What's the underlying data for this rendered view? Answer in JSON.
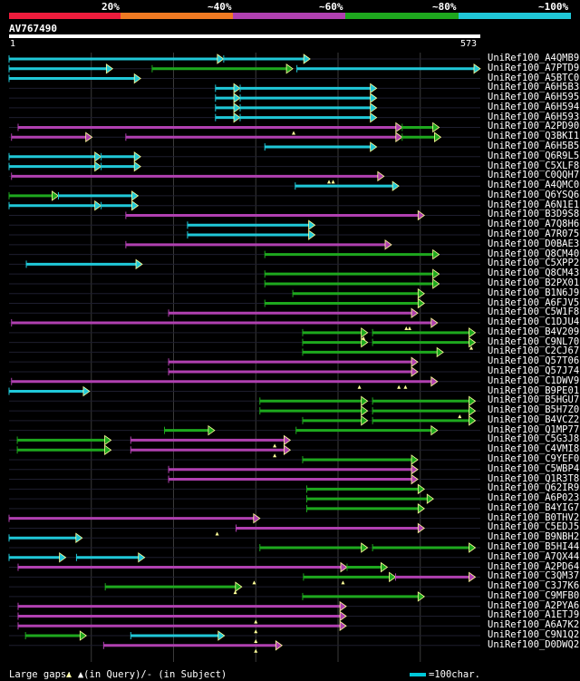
{
  "colors": {
    "red": "#ee1c3c",
    "orange": "#f07a22",
    "purple": "#b040b0",
    "green": "#1ea81e",
    "cyan": "#20c8d8",
    "grid": "#3a3a3a",
    "arrowhead": "#ffff99"
  },
  "legend": {
    "segments": [
      {
        "label": "20%",
        "color": "red"
      },
      {
        "label": "~40%",
        "color": "orange"
      },
      {
        "label": "~60%",
        "color": "purple"
      },
      {
        "label": "~80%",
        "color": "green"
      },
      {
        "label": "~100%",
        "color": "cyan"
      }
    ]
  },
  "query": {
    "id": "AV767490",
    "start": "1",
    "end": "573"
  },
  "hits": [
    {
      "id": "UniRef100_A4QMB9",
      "color": "cyan",
      "segs": [
        [
          0,
          261
        ],
        [
          261,
          366
        ]
      ]
    },
    {
      "id": "UniRef100_A7PTD9",
      "color": "cyan",
      "segs": [
        [
          0,
          126
        ],
        [
          174,
          345
        ],
        [
          350,
          573
        ]
      ],
      "segcolors": [
        "cyan",
        "green",
        "cyan"
      ]
    },
    {
      "id": "UniRef100_A5BTC0",
      "color": "cyan",
      "segs": [
        [
          0,
          160
        ]
      ]
    },
    {
      "id": "UniRef100_A6H5B3",
      "color": "cyan",
      "segs": [
        [
          251,
          281
        ],
        [
          281,
          447
        ]
      ]
    },
    {
      "id": "UniRef100_A6H595",
      "color": "cyan",
      "segs": [
        [
          251,
          281
        ],
        [
          281,
          447
        ]
      ]
    },
    {
      "id": "UniRef100_A6H594",
      "color": "cyan",
      "segs": [
        [
          251,
          281
        ],
        [
          281,
          447
        ]
      ]
    },
    {
      "id": "UniRef100_A6H593",
      "color": "cyan",
      "segs": [
        [
          251,
          281
        ],
        [
          281,
          447
        ]
      ]
    },
    {
      "id": "UniRef100_A2PD90",
      "color": "purple",
      "segs": [
        [
          11,
          478
        ],
        [
          478,
          523
        ]
      ],
      "segcolors": [
        "purple",
        "green"
      ]
    },
    {
      "id": "UniRef100_Q3BKI1",
      "color": "purple",
      "segs": [
        [
          3,
          101
        ],
        [
          142,
          478
        ],
        [
          478,
          525
        ]
      ],
      "segcolors": [
        "purple",
        "purple",
        "green"
      ]
    },
    {
      "id": "UniRef100_A6H5B5",
      "color": "cyan",
      "segs": [
        [
          311,
          447
        ]
      ]
    },
    {
      "id": "UniRef100_Q6R9L5",
      "color": "cyan",
      "segs": [
        [
          0,
          112
        ],
        [
          112,
          160
        ]
      ]
    },
    {
      "id": "UniRef100_C5XLF8",
      "color": "cyan",
      "segs": [
        [
          0,
          112
        ],
        [
          112,
          160
        ]
      ]
    },
    {
      "id": "UniRef100_C0QQH7",
      "color": "purple",
      "segs": [
        [
          3,
          456
        ]
      ]
    },
    {
      "id": "UniRef100_A4QMC0",
      "color": "cyan",
      "segs": [
        [
          348,
          474
        ]
      ]
    },
    {
      "id": "UniRef100_Q6YSQ6",
      "color": "cyan",
      "segs": [
        [
          0,
          60
        ],
        [
          60,
          157
        ]
      ],
      "segcolors": [
        "green",
        "cyan"
      ]
    },
    {
      "id": "UniRef100_A6N1E1",
      "color": "cyan",
      "segs": [
        [
          0,
          112
        ],
        [
          112,
          157
        ]
      ]
    },
    {
      "id": "UniRef100_B3D9S8",
      "color": "purple",
      "segs": [
        [
          142,
          505
        ]
      ]
    },
    {
      "id": "UniRef100_A7Q8H6",
      "color": "cyan",
      "segs": [
        [
          217,
          372
        ]
      ]
    },
    {
      "id": "UniRef100_A7R075",
      "color": "cyan",
      "segs": [
        [
          217,
          372
        ]
      ]
    },
    {
      "id": "UniRef100_D0BAE3",
      "color": "purple",
      "segs": [
        [
          142,
          465
        ]
      ]
    },
    {
      "id": "UniRef100_Q8CM40",
      "color": "green",
      "segs": [
        [
          311,
          523
        ]
      ]
    },
    {
      "id": "UniRef100_C5XPP2",
      "color": "cyan",
      "segs": [
        [
          21,
          162
        ]
      ]
    },
    {
      "id": "UniRef100_Q8CM43",
      "color": "green",
      "segs": [
        [
          311,
          523
        ]
      ]
    },
    {
      "id": "UniRef100_B2PX01",
      "color": "green",
      "segs": [
        [
          311,
          523
        ]
      ]
    },
    {
      "id": "UniRef100_B1N6J9",
      "color": "green",
      "segs": [
        [
          345,
          505
        ]
      ]
    },
    {
      "id": "UniRef100_A6FJV5",
      "color": "green",
      "segs": [
        [
          311,
          505
        ]
      ],
      "segcolors": [
        "green"
      ]
    },
    {
      "id": "UniRef100_C5W1F8",
      "color": "purple",
      "segs": [
        [
          194,
          497
        ]
      ]
    },
    {
      "id": "UniRef100_C1DJU4",
      "color": "purple",
      "segs": [
        [
          3,
          521
        ]
      ]
    },
    {
      "id": "UniRef100_B4V209",
      "color": "green",
      "segs": [
        [
          357,
          436
        ],
        [
          442,
          567
        ]
      ]
    },
    {
      "id": "UniRef100_C9NL70",
      "color": "green",
      "segs": [
        [
          357,
          436
        ],
        [
          442,
          567
        ]
      ]
    },
    {
      "id": "UniRef100_C2CJ67",
      "color": "green",
      "segs": [
        [
          357,
          528
        ]
      ]
    },
    {
      "id": "UniRef100_Q57T06",
      "color": "purple",
      "segs": [
        [
          194,
          497
        ]
      ]
    },
    {
      "id": "UniRef100_Q57J74",
      "color": "purple",
      "segs": [
        [
          194,
          497
        ]
      ]
    },
    {
      "id": "UniRef100_C1DWV9",
      "color": "purple",
      "segs": [
        [
          3,
          521
        ]
      ]
    },
    {
      "id": "UniRef100_B9PE01",
      "color": "cyan",
      "segs": [
        [
          0,
          98
        ]
      ]
    },
    {
      "id": "UniRef100_B5HGU7",
      "color": "green",
      "segs": [
        [
          305,
          436
        ],
        [
          442,
          567
        ]
      ]
    },
    {
      "id": "UniRef100_B5H7Z0",
      "color": "green",
      "segs": [
        [
          305,
          436
        ],
        [
          442,
          567
        ]
      ]
    },
    {
      "id": "UniRef100_B4VCZ2",
      "color": "green",
      "segs": [
        [
          357,
          436
        ],
        [
          442,
          567
        ]
      ]
    },
    {
      "id": "UniRef100_Q1MP77",
      "color": "green",
      "segs": [
        [
          189,
          250
        ],
        [
          349,
          521
        ]
      ],
      "segcolors": [
        "green",
        "green"
      ]
    },
    {
      "id": "UniRef100_C5G3J8",
      "color": "green",
      "segs": [
        [
          10,
          124
        ],
        [
          148,
          342
        ]
      ],
      "segcolors": [
        "green",
        "purple"
      ]
    },
    {
      "id": "UniRef100_C4VMI8",
      "color": "green",
      "segs": [
        [
          10,
          124
        ],
        [
          148,
          342
        ]
      ],
      "segcolors": [
        "green",
        "purple"
      ]
    },
    {
      "id": "UniRef100_C9YEF0",
      "color": "green",
      "segs": [
        [
          357,
          497
        ]
      ]
    },
    {
      "id": "UniRef100_C5WBP4",
      "color": "purple",
      "segs": [
        [
          194,
          497
        ]
      ]
    },
    {
      "id": "UniRef100_Q1R3T8",
      "color": "purple",
      "segs": [
        [
          194,
          497
        ]
      ]
    },
    {
      "id": "UniRef100_Q62IR9",
      "color": "green",
      "segs": [
        [
          362,
          505
        ]
      ]
    },
    {
      "id": "UniRef100_A6P023",
      "color": "green",
      "segs": [
        [
          362,
          516
        ]
      ]
    },
    {
      "id": "UniRef100_B4YIG7",
      "color": "green",
      "segs": [
        [
          362,
          505
        ]
      ]
    },
    {
      "id": "UniRef100_B0THV2",
      "color": "purple",
      "segs": [
        [
          0,
          305
        ]
      ]
    },
    {
      "id": "UniRef100_C5EDJ5",
      "color": "purple",
      "segs": [
        [
          276,
          505
        ]
      ]
    },
    {
      "id": "UniRef100_B9NBH2",
      "color": "cyan",
      "segs": [
        [
          0,
          89
        ]
      ]
    },
    {
      "id": "UniRef100_B5HI44",
      "color": "green",
      "segs": [
        [
          305,
          436
        ],
        [
          442,
          567
        ]
      ]
    },
    {
      "id": "UniRef100_A7QX44",
      "color": "cyan",
      "segs": [
        [
          0,
          69
        ],
        [
          82,
          165
        ]
      ]
    },
    {
      "id": "UniRef100_A2PD64",
      "color": "purple",
      "segs": [
        [
          11,
          411
        ],
        [
          411,
          460
        ]
      ],
      "segcolors": [
        "purple",
        "green"
      ]
    },
    {
      "id": "UniRef100_C3QM37",
      "color": "purple",
      "segs": [
        [
          358,
          470
        ],
        [
          470,
          567
        ]
      ],
      "segcolors": [
        "green",
        "purple"
      ]
    },
    {
      "id": "UniRef100_C3J7K6",
      "color": "green",
      "segs": [
        [
          117,
          283
        ]
      ]
    },
    {
      "id": "UniRef100_C9MFB0",
      "color": "green",
      "segs": [
        [
          357,
          505
        ]
      ]
    },
    {
      "id": "UniRef100_A2PYA6",
      "color": "purple",
      "segs": [
        [
          11,
          410
        ]
      ]
    },
    {
      "id": "UniRef100_A1ETJ9",
      "color": "purple",
      "segs": [
        [
          11,
          410
        ]
      ]
    },
    {
      "id": "UniRef100_A6A7K2",
      "color": "purple",
      "segs": [
        [
          11,
          410
        ]
      ]
    },
    {
      "id": "UniRef100_C9N1Q2",
      "color": "green",
      "segs": [
        [
          20,
          94
        ],
        [
          148,
          262
        ]
      ],
      "segcolors": [
        "green",
        "cyan"
      ]
    },
    {
      "id": "UniRef100_D0DWQ2",
      "color": "purple",
      "segs": [
        [
          115,
          332
        ]
      ]
    }
  ],
  "gap_marks": [
    {
      "row": 7,
      "pos": 346
    },
    {
      "row": 12,
      "pos": 389
    },
    {
      "row": 12,
      "pos": 394
    },
    {
      "row": 27,
      "pos": 483
    },
    {
      "row": 27,
      "pos": 487
    },
    {
      "row": 28,
      "pos": 431
    },
    {
      "row": 29,
      "pos": 562
    },
    {
      "row": 33,
      "pos": 426
    },
    {
      "row": 33,
      "pos": 474
    },
    {
      "row": 33,
      "pos": 482
    },
    {
      "row": 36,
      "pos": 548
    },
    {
      "row": 39,
      "pos": 323
    },
    {
      "row": 40,
      "pos": 323
    },
    {
      "row": 48,
      "pos": 253
    },
    {
      "row": 53,
      "pos": 298
    },
    {
      "row": 53,
      "pos": 406
    },
    {
      "row": 54,
      "pos": 275
    },
    {
      "row": 57,
      "pos": 300
    },
    {
      "row": 58,
      "pos": 300
    },
    {
      "row": 59,
      "pos": 300
    },
    {
      "row": 60,
      "pos": 300
    }
  ],
  "footer": {
    "gaps_text": "Large gaps: ▲(in Query)/- (in Subject)",
    "scale_text": "=100char."
  }
}
